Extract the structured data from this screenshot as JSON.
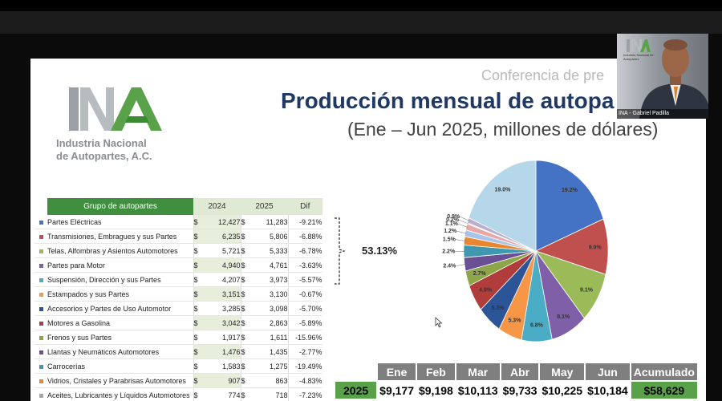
{
  "slide": {
    "conference_text": "Conferencia de pre",
    "title": "Producción mensual de autopa",
    "subtitle": "(Ene – Jun 2025, millones de dólares)",
    "logo_line1": "Industria Nacional",
    "logo_line2": "de Autopartes, A.C.",
    "bracket_percent": "53.13%"
  },
  "table": {
    "headers": {
      "group": "Grupo de autopartes",
      "y2024": "2024",
      "y2025": "2025",
      "dif": "Dif"
    },
    "currency": "$",
    "rows": [
      {
        "name": "Partes Eléctricas",
        "v2024": "12,427",
        "v2025": "11,283",
        "dif": "-9.21%",
        "color": "#4472c4"
      },
      {
        "name": "Transmisiones, Embragues y sus Partes",
        "v2024": "6,235",
        "v2025": "5,806",
        "dif": "-6.88%",
        "color": "#c0504d"
      },
      {
        "name": "Telas, Alfombras y Asientos Automotores",
        "v2024": "5,721",
        "v2025": "5,333",
        "dif": "-6.78%",
        "color": "#9bbb59"
      },
      {
        "name": "Partes para Motor",
        "v2024": "4,940",
        "v2025": "4,761",
        "dif": "-3.63%",
        "color": "#7f5fa8"
      },
      {
        "name": "Suspensión, Dirección y sus Partes",
        "v2024": "4,207",
        "v2025": "3,973",
        "dif": "-5.57%",
        "color": "#4bacc6"
      },
      {
        "name": "Estampados y sus Partes",
        "v2024": "3,151",
        "v2025": "3,130",
        "dif": "-0.67%",
        "color": "#f79646"
      },
      {
        "name": "Accesorios y Partes de Uso Automotor",
        "v2024": "3,285",
        "v2025": "3,098",
        "dif": "-5.70%",
        "color": "#2c5597"
      },
      {
        "name": "Motores a Gasolina",
        "v2024": "3,042",
        "v2025": "2,863",
        "dif": "-5.89%",
        "color": "#b03c3c"
      },
      {
        "name": "Frenos y sus Partes",
        "v2024": "1,917",
        "v2025": "1,611",
        "dif": "-15.96%",
        "color": "#8ea64a"
      },
      {
        "name": "Llantas y Neumáticos Automotores",
        "v2024": "1,476",
        "v2025": "1,435",
        "dif": "-2.77%",
        "color": "#6a4f94"
      },
      {
        "name": "Carrocerías",
        "v2024": "1,583",
        "v2025": "1,275",
        "dif": "-19.49%",
        "color": "#3f97b0"
      },
      {
        "name": "Vidrios, Cristales y Parabrisas Automotores",
        "v2024": "907",
        "v2025": "863",
        "dif": "-4.83%",
        "color": "#e9862f"
      },
      {
        "name": "Aceites, Lubricantes y Líquidos Automotores",
        "v2024": "774",
        "v2025": "718",
        "dif": "-7.23%",
        "color": "#a5a5a5"
      }
    ]
  },
  "chart_data": {
    "type": "pie",
    "slices": [
      {
        "label": "19.2%",
        "value": 19.2,
        "color": "#4472c4"
      },
      {
        "label": "9.9%",
        "value": 9.9,
        "color": "#c0504d"
      },
      {
        "label": "9.1%",
        "value": 9.1,
        "color": "#9bbb59"
      },
      {
        "label": "8.1%",
        "value": 8.1,
        "color": "#7f5fa8"
      },
      {
        "label": "6.8%",
        "value": 6.8,
        "color": "#4bacc6"
      },
      {
        "label": "5.3%",
        "value": 5.3,
        "color": "#f79646"
      },
      {
        "label": "5.3%",
        "value": 5.3,
        "color": "#2c5597"
      },
      {
        "label": "4.9%",
        "value": 4.9,
        "color": "#b03c3c"
      },
      {
        "label": "2.7%",
        "value": 2.7,
        "color": "#8ea64a"
      },
      {
        "label": "2.4%",
        "value": 2.4,
        "color": "#6a4f94"
      },
      {
        "label": "2.2%",
        "value": 2.2,
        "color": "#3f97b0"
      },
      {
        "label": "1.5%",
        "value": 1.5,
        "color": "#e9862f"
      },
      {
        "label": "1.2%",
        "value": 1.2,
        "color": "#a9c4e8"
      },
      {
        "label": "1.1%",
        "value": 1.1,
        "color": "#e6a8a6"
      },
      {
        "label": "0.2%",
        "value": 0.2,
        "color": "#c9dba9"
      },
      {
        "label": "0.9%",
        "value": 0.9,
        "color": "#bcaed3"
      },
      {
        "label": "19.0%",
        "value": 19.0,
        "color": "#b6d7ea"
      }
    ]
  },
  "monthly": {
    "year": "2025",
    "headers": [
      "Ene",
      "Feb",
      "Mar",
      "Abr",
      "May",
      "Jun",
      "Acumulado"
    ],
    "values": [
      "$9,177",
      "$9,198",
      "$10,113",
      "$9,733",
      "$10,225",
      "$10,184",
      "$58,629"
    ]
  },
  "webcam": {
    "name_tag": "INA - Gabriel Padilla",
    "logo_text": "Industria Nacional de Autopartes"
  }
}
